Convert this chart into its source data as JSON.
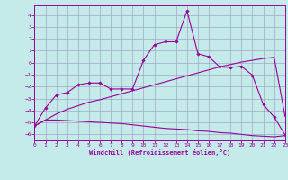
{
  "xlabel": "Windchill (Refroidissement éolien,°C)",
  "bg_color": "#c5eaea",
  "grid_color": "#9999bb",
  "line_color": "#990099",
  "xlim": [
    0,
    23
  ],
  "ylim": [
    -6.5,
    4.8
  ],
  "yticks": [
    -6,
    -5,
    -4,
    -3,
    -2,
    -1,
    0,
    1,
    2,
    3,
    4
  ],
  "xticks": [
    0,
    1,
    2,
    3,
    4,
    5,
    6,
    7,
    8,
    9,
    10,
    11,
    12,
    13,
    14,
    15,
    16,
    17,
    18,
    19,
    20,
    21,
    22,
    23
  ],
  "s1_x": [
    0,
    1,
    2,
    3,
    4,
    5,
    6,
    7,
    8,
    9,
    10,
    11,
    12,
    13,
    14,
    15,
    16,
    17,
    18,
    19,
    20,
    21,
    22,
    23
  ],
  "s1_y": [
    -5.3,
    -4.8,
    -4.8,
    -4.85,
    -4.9,
    -4.95,
    -5.0,
    -5.05,
    -5.1,
    -5.2,
    -5.3,
    -5.4,
    -5.5,
    -5.55,
    -5.6,
    -5.7,
    -5.75,
    -5.85,
    -5.9,
    -6.0,
    -6.1,
    -6.15,
    -6.2,
    -6.1
  ],
  "s2_x": [
    0,
    1,
    2,
    3,
    4,
    5,
    6,
    7,
    8,
    9,
    10,
    11,
    12,
    13,
    14,
    15,
    16,
    17,
    18,
    19,
    20,
    21,
    22,
    23
  ],
  "s2_y": [
    -5.3,
    -4.8,
    -4.3,
    -3.9,
    -3.6,
    -3.3,
    -3.1,
    -2.85,
    -2.6,
    -2.35,
    -2.1,
    -1.85,
    -1.6,
    -1.35,
    -1.1,
    -0.85,
    -0.6,
    -0.35,
    -0.15,
    0.05,
    0.2,
    0.35,
    0.45,
    -4.5
  ],
  "s3_x": [
    0,
    1,
    2,
    3,
    4,
    5,
    6,
    7,
    8,
    9,
    10,
    11,
    12,
    13,
    14,
    15,
    16,
    17,
    18,
    19,
    20,
    21,
    22,
    23
  ],
  "s3_y": [
    -5.3,
    -3.8,
    -2.7,
    -2.5,
    -1.85,
    -1.7,
    -1.7,
    -2.2,
    -2.2,
    -2.2,
    0.2,
    1.5,
    1.75,
    1.75,
    4.35,
    0.75,
    0.5,
    -0.35,
    -0.4,
    -0.3,
    -1.05,
    -3.5,
    -4.55,
    -6.05
  ]
}
